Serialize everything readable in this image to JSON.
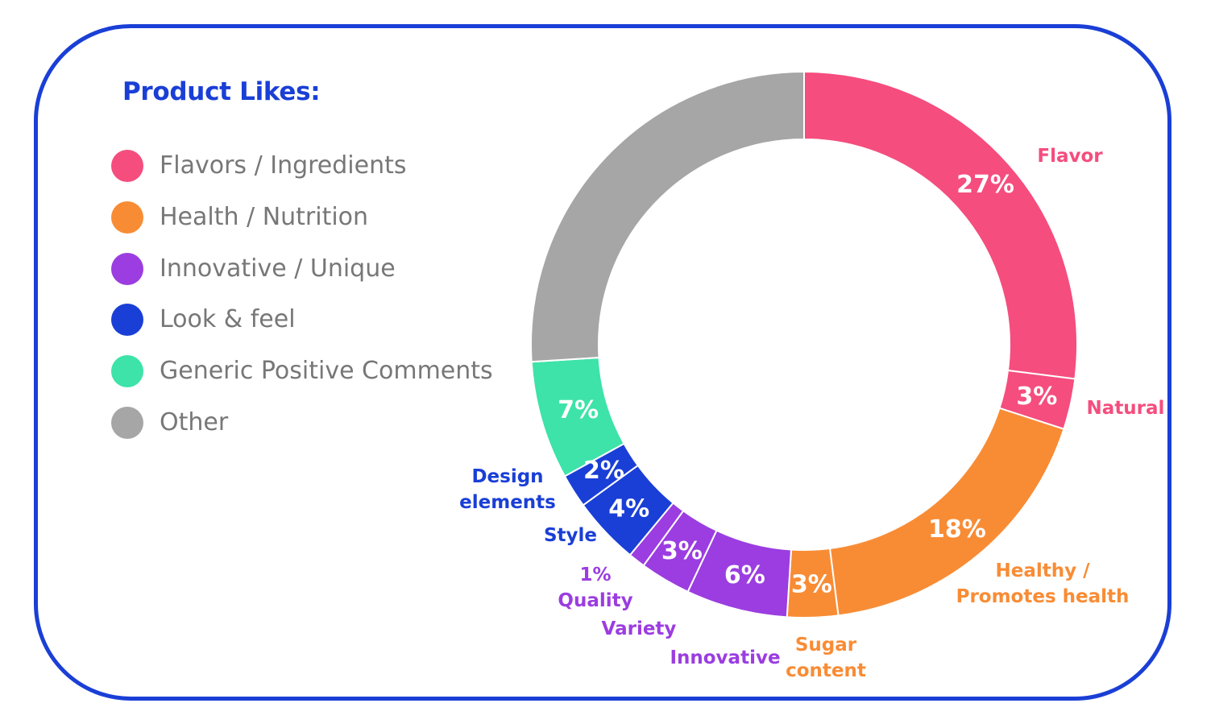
{
  "legend": {
    "title": "Product Likes:",
    "items": [
      {
        "label": "Flavors / Ingredients",
        "color": "#f54d7e"
      },
      {
        "label": "Health / Nutrition",
        "color": "#f88c35"
      },
      {
        "label": "Innovative / Unique",
        "color": "#9b3de0"
      },
      {
        "label": "Look & feel",
        "color": "#1a3fd6"
      },
      {
        "label": "Generic Positive Comments",
        "color": "#3de3a8"
      },
      {
        "label": "Other",
        "color": "#a6a6a6"
      }
    ]
  },
  "chart_data": {
    "type": "pie",
    "title": "Product Likes:",
    "legend_position": "left",
    "slices": [
      {
        "name": "Flavor",
        "category": "Flavors / Ingredients",
        "value": 27,
        "label": "27%",
        "color": "#f54d7e"
      },
      {
        "name": "Natural",
        "category": "Flavors / Ingredients",
        "value": 3,
        "label": "3%",
        "color": "#f54d7e"
      },
      {
        "name": "Healthy / Promotes health",
        "category": "Health / Nutrition",
        "value": 18,
        "label": "18%",
        "color": "#f88c35"
      },
      {
        "name": "Sugar content",
        "category": "Health / Nutrition",
        "value": 3,
        "label": "3%",
        "color": "#f88c35"
      },
      {
        "name": "Innovative",
        "category": "Innovative / Unique",
        "value": 6,
        "label": "6%",
        "color": "#9b3de0"
      },
      {
        "name": "Variety",
        "category": "Innovative / Unique",
        "value": 3,
        "label": "3%",
        "color": "#9b3de0"
      },
      {
        "name": "Quality",
        "category": "Innovative / Unique",
        "value": 1,
        "label": "1%",
        "color": "#9b3de0"
      },
      {
        "name": "Style",
        "category": "Look & feel",
        "value": 4,
        "label": "4%",
        "color": "#1a3fd6"
      },
      {
        "name": "Design elements",
        "category": "Look & feel",
        "value": 2,
        "label": "2%",
        "color": "#1a3fd6"
      },
      {
        "name": "",
        "category": "Generic Positive Comments",
        "value": 7,
        "label": "7%",
        "color": "#3de3a8"
      },
      {
        "name": "",
        "category": "Other",
        "value": 26,
        "label": "",
        "color": "#a6a6a6"
      }
    ],
    "external_labels": [
      {
        "lines": [
          "Flavor"
        ],
        "color": "#f54d7e"
      },
      {
        "lines": [
          "Natural"
        ],
        "color": "#f54d7e"
      },
      {
        "lines": [
          "Healthy /",
          "Promotes health"
        ],
        "color": "#f88c35"
      },
      {
        "lines": [
          "Sugar",
          "content"
        ],
        "color": "#f88c35"
      },
      {
        "lines": [
          "Innovative"
        ],
        "color": "#9b3de0"
      },
      {
        "lines": [
          "Variety"
        ],
        "color": "#9b3de0"
      },
      {
        "lines": [
          "1%",
          "Quality"
        ],
        "color": "#9b3de0"
      },
      {
        "lines": [
          "Style"
        ],
        "color": "#1a3fd6"
      },
      {
        "lines": [
          "Design",
          "elements"
        ],
        "color": "#1a3fd6"
      }
    ]
  }
}
